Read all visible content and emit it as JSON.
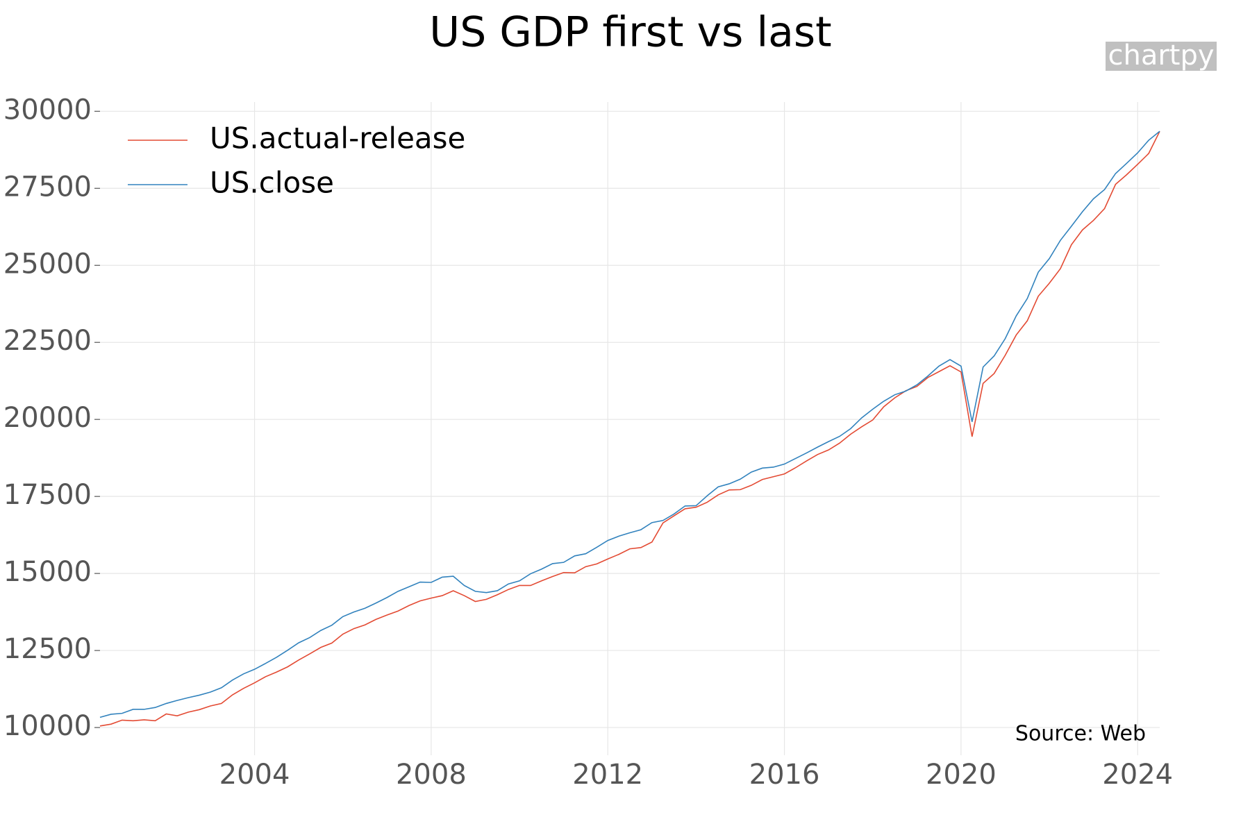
{
  "chart_data": {
    "type": "line",
    "title": "US GDP first vs last",
    "watermark": "chartpy",
    "source": "Source: Web",
    "legend": "upper left",
    "grid": true,
    "xlim": [
      2000.5,
      2024.5
    ],
    "xticks": [
      2004,
      2008,
      2012,
      2016,
      2020,
      2024
    ],
    "ylim": [
      9100,
      30300
    ],
    "yticks": [
      10000,
      12500,
      15000,
      17500,
      20000,
      22500,
      25000,
      27500,
      30000
    ],
    "x": [
      2000.5,
      2000.75,
      2001,
      2001.25,
      2001.5,
      2001.75,
      2002,
      2002.25,
      2002.5,
      2002.75,
      2003,
      2003.25,
      2003.5,
      2003.75,
      2004,
      2004.25,
      2004.5,
      2004.75,
      2005,
      2005.25,
      2005.5,
      2005.75,
      2006,
      2006.25,
      2006.5,
      2006.75,
      2007,
      2007.25,
      2007.5,
      2007.75,
      2008,
      2008.25,
      2008.5,
      2008.75,
      2009,
      2009.25,
      2009.5,
      2009.75,
      2010,
      2010.25,
      2010.5,
      2010.75,
      2011,
      2011.25,
      2011.5,
      2011.75,
      2012,
      2012.25,
      2012.5,
      2012.75,
      2013,
      2013.25,
      2013.5,
      2013.75,
      2014,
      2014.25,
      2014.5,
      2014.75,
      2015,
      2015.25,
      2015.5,
      2015.75,
      2016,
      2016.25,
      2016.5,
      2016.75,
      2017,
      2017.25,
      2017.5,
      2017.75,
      2018,
      2018.25,
      2018.5,
      2018.75,
      2019,
      2019.25,
      2019.5,
      2019.75,
      2020,
      2020.25,
      2020.5,
      2020.75,
      2021,
      2021.25,
      2021.5,
      2021.75,
      2022,
      2022.25,
      2022.5,
      2022.75,
      2023,
      2023.25,
      2023.5,
      2023.75,
      2024,
      2024.25,
      2024.5
    ],
    "series": [
      {
        "name": "US.actual-release",
        "color": "#e34a33",
        "values": [
          10050,
          10110,
          10240,
          10220,
          10250,
          10220,
          10440,
          10380,
          10500,
          10580,
          10700,
          10780,
          11060,
          11270,
          11450,
          11650,
          11800,
          11970,
          12190,
          12390,
          12600,
          12740,
          13030,
          13210,
          13330,
          13510,
          13650,
          13780,
          13960,
          14110,
          14200,
          14280,
          14440,
          14280,
          14090,
          14160,
          14310,
          14480,
          14610,
          14610,
          14760,
          14900,
          15030,
          15020,
          15220,
          15310,
          15470,
          15620,
          15800,
          15840,
          16020,
          16640,
          16870,
          17100,
          17150,
          17310,
          17550,
          17710,
          17720,
          17860,
          18050,
          18140,
          18230,
          18430,
          18650,
          18860,
          19010,
          19230,
          19520,
          19760,
          19980,
          20410,
          20700,
          20930,
          21070,
          21360,
          21550,
          21740,
          21540,
          19440,
          21170,
          21490,
          22080,
          22740,
          23200,
          24000,
          24420,
          24890,
          25670,
          26150,
          26460,
          26840,
          27630,
          27940,
          28280,
          28630,
          29350
        ]
      },
      {
        "name": "US.close",
        "color": "#3182bd",
        "values": [
          10330,
          10430,
          10460,
          10590,
          10590,
          10650,
          10780,
          10880,
          10970,
          11050,
          11150,
          11290,
          11540,
          11740,
          11890,
          12080,
          12280,
          12510,
          12750,
          12920,
          13150,
          13320,
          13600,
          13750,
          13870,
          14040,
          14220,
          14420,
          14570,
          14720,
          14710,
          14880,
          14910,
          14610,
          14420,
          14380,
          14440,
          14660,
          14760,
          14990,
          15140,
          15320,
          15360,
          15570,
          15640,
          15850,
          16070,
          16210,
          16320,
          16420,
          16650,
          16720,
          16930,
          17190,
          17200,
          17520,
          17810,
          17910,
          18060,
          18290,
          18420,
          18450,
          18550,
          18730,
          18910,
          19100,
          19280,
          19450,
          19700,
          20050,
          20330,
          20590,
          20800,
          20920,
          21120,
          21410,
          21730,
          21940,
          21730,
          19920,
          21700,
          22060,
          22620,
          23360,
          23920,
          24780,
          25220,
          25810,
          26270,
          26740,
          27160,
          27460,
          27980,
          28310,
          28650,
          29060,
          29350
        ]
      }
    ]
  }
}
